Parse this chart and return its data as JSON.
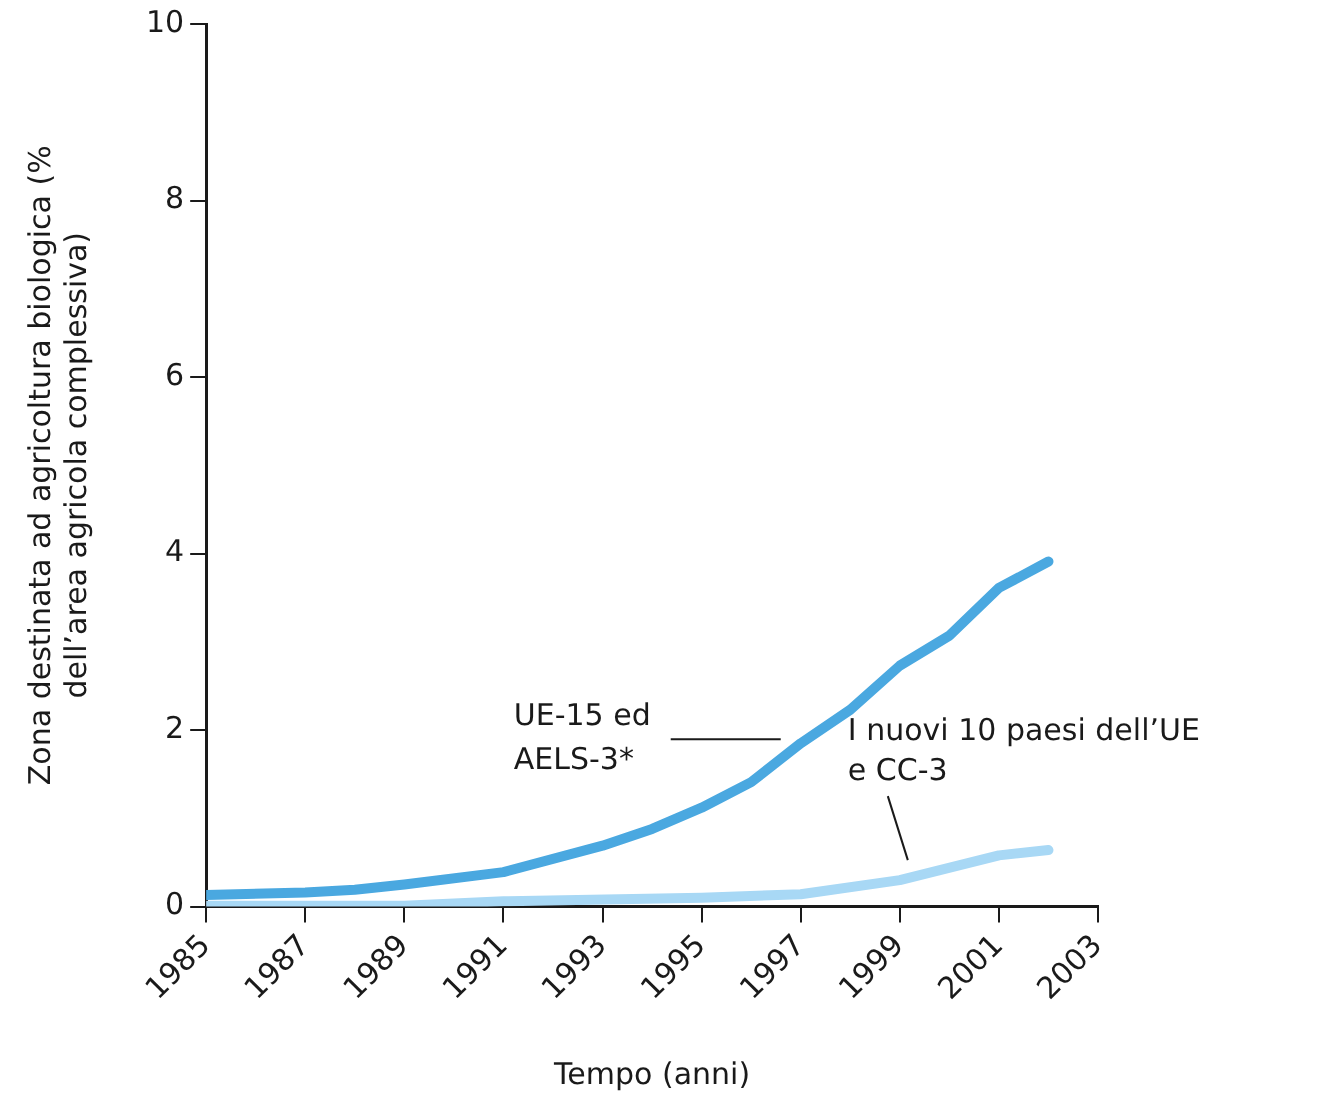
{
  "chart_data": {
    "type": "line",
    "xlabel": "Tempo (anni)",
    "ylabel": "Zona destinata ad agricoltura biologica (% dell’area agricola complessiva)",
    "xlim": [
      1985,
      2003
    ],
    "xticks": [
      1985,
      1987,
      1989,
      1991,
      1993,
      1995,
      1997,
      1999,
      2001,
      2003
    ],
    "ylim": [
      0,
      10
    ],
    "yticks": [
      0,
      2,
      4,
      6,
      8,
      10
    ],
    "legend": false,
    "marker": "none",
    "line_style": "solid",
    "series": [
      {
        "name": "UE-15 ed AELS-3*",
        "color": "#4aa8e0",
        "x": [
          1985,
          1987,
          1988,
          1989,
          1991,
          1993,
          1994,
          1995,
          1996,
          1997,
          1998,
          1999,
          2000,
          2001,
          2002
        ],
        "values": [
          0.13,
          0.16,
          0.19,
          0.25,
          0.39,
          0.69,
          0.88,
          1.12,
          1.41,
          1.85,
          2.23,
          2.73,
          3.07,
          3.61,
          3.91
        ]
      },
      {
        "name": "I nuovi 10 paesi dell’UE e CC-3",
        "color": "#a8d8f5",
        "x": [
          1985,
          1989,
          1991,
          1995,
          1997,
          1999,
          2001,
          2002
        ],
        "values": [
          0.01,
          0.01,
          0.06,
          0.1,
          0.14,
          0.3,
          0.58,
          0.64
        ]
      }
    ]
  }
}
